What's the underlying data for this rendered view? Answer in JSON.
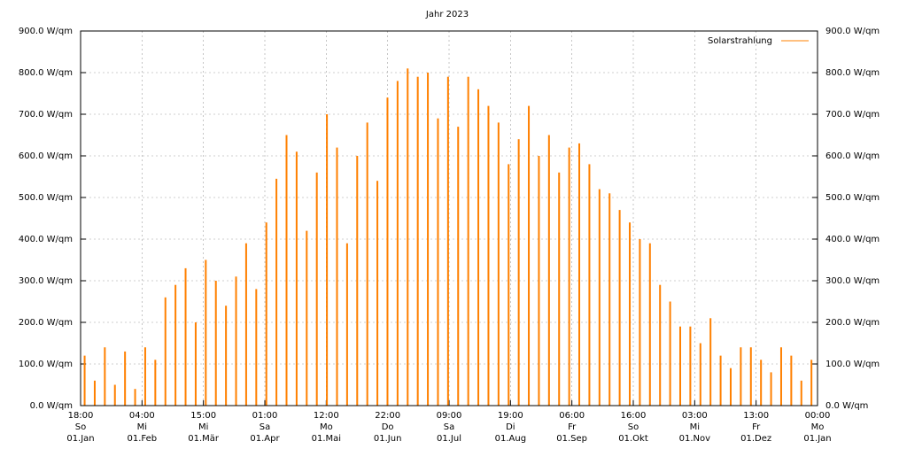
{
  "chart_data": {
    "type": "impulse",
    "title": "Jahr 2023",
    "series": [
      {
        "name": "Solarstrahlung",
        "color": "#ff8000",
        "x": [
          2,
          7,
          12,
          17,
          22,
          27,
          32,
          37,
          42,
          47,
          52,
          57,
          62,
          67,
          72,
          77,
          82,
          87,
          92,
          97,
          102,
          107,
          112,
          117,
          122,
          127,
          132,
          137,
          142,
          147,
          152,
          157,
          162,
          167,
          172,
          177,
          182,
          187,
          192,
          197,
          202,
          207,
          212,
          217,
          222,
          227,
          232,
          237,
          242,
          247,
          252,
          257,
          262,
          267,
          272,
          277,
          282,
          287,
          292,
          297,
          302,
          307,
          312,
          317,
          322,
          327,
          332,
          337,
          342,
          347,
          352,
          357,
          362
        ],
        "values": [
          120,
          60,
          140,
          50,
          130,
          40,
          140,
          110,
          260,
          290,
          330,
          200,
          350,
          300,
          240,
          310,
          390,
          280,
          440,
          545,
          650,
          610,
          420,
          560,
          700,
          620,
          390,
          600,
          680,
          540,
          740,
          780,
          810,
          790,
          800,
          690,
          790,
          670,
          790,
          760,
          720,
          680,
          580,
          640,
          720,
          600,
          650,
          560,
          620,
          630,
          580,
          520,
          510,
          470,
          440,
          400,
          390,
          290,
          250,
          190,
          190,
          150,
          210,
          120,
          90,
          140,
          140,
          110,
          80,
          140,
          120,
          60,
          110
        ]
      }
    ],
    "xlim": [
      0,
      365
    ],
    "xticks": [
      {
        "value": 0,
        "label": [
          "18:00",
          "So",
          "01.Jan"
        ]
      },
      {
        "value": 30.42,
        "label": [
          "04:00",
          "Mi",
          "01.Feb"
        ]
      },
      {
        "value": 60.83,
        "label": [
          "15:00",
          "Mi",
          "01.Mär"
        ]
      },
      {
        "value": 91.25,
        "label": [
          "01:00",
          "Sa",
          "01.Apr"
        ]
      },
      {
        "value": 121.67,
        "label": [
          "12:00",
          "Mo",
          "01.Mai"
        ]
      },
      {
        "value": 152.08,
        "label": [
          "22:00",
          "Do",
          "01.Jun"
        ]
      },
      {
        "value": 182.5,
        "label": [
          "09:00",
          "Sa",
          "01.Jul"
        ]
      },
      {
        "value": 212.92,
        "label": [
          "19:00",
          "Di",
          "01.Aug"
        ]
      },
      {
        "value": 243.33,
        "label": [
          "06:00",
          "Fr",
          "01.Sep"
        ]
      },
      {
        "value": 273.75,
        "label": [
          "16:00",
          "So",
          "01.Okt"
        ]
      },
      {
        "value": 304.17,
        "label": [
          "03:00",
          "Mi",
          "01.Nov"
        ]
      },
      {
        "value": 334.58,
        "label": [
          "13:00",
          "Fr",
          "01.Dez"
        ]
      },
      {
        "value": 365,
        "label": [
          "00:00",
          "Mo",
          "01.Jan"
        ]
      }
    ],
    "ylim": [
      0,
      900
    ],
    "yticks": [
      {
        "value": 0,
        "label": "0.0 W/qm"
      },
      {
        "value": 100,
        "label": "100.0 W/qm"
      },
      {
        "value": 200,
        "label": "200.0 W/qm"
      },
      {
        "value": 300,
        "label": "300.0 W/qm"
      },
      {
        "value": 400,
        "label": "400.0 W/qm"
      },
      {
        "value": 500,
        "label": "500.0 W/qm"
      },
      {
        "value": 600,
        "label": "600.0 W/qm"
      },
      {
        "value": 700,
        "label": "700.0 W/qm"
      },
      {
        "value": 800,
        "label": "800.0 W/qm"
      },
      {
        "value": 900,
        "label": "900.0 W/qm"
      }
    ],
    "grid": true,
    "legend": "top-right"
  }
}
